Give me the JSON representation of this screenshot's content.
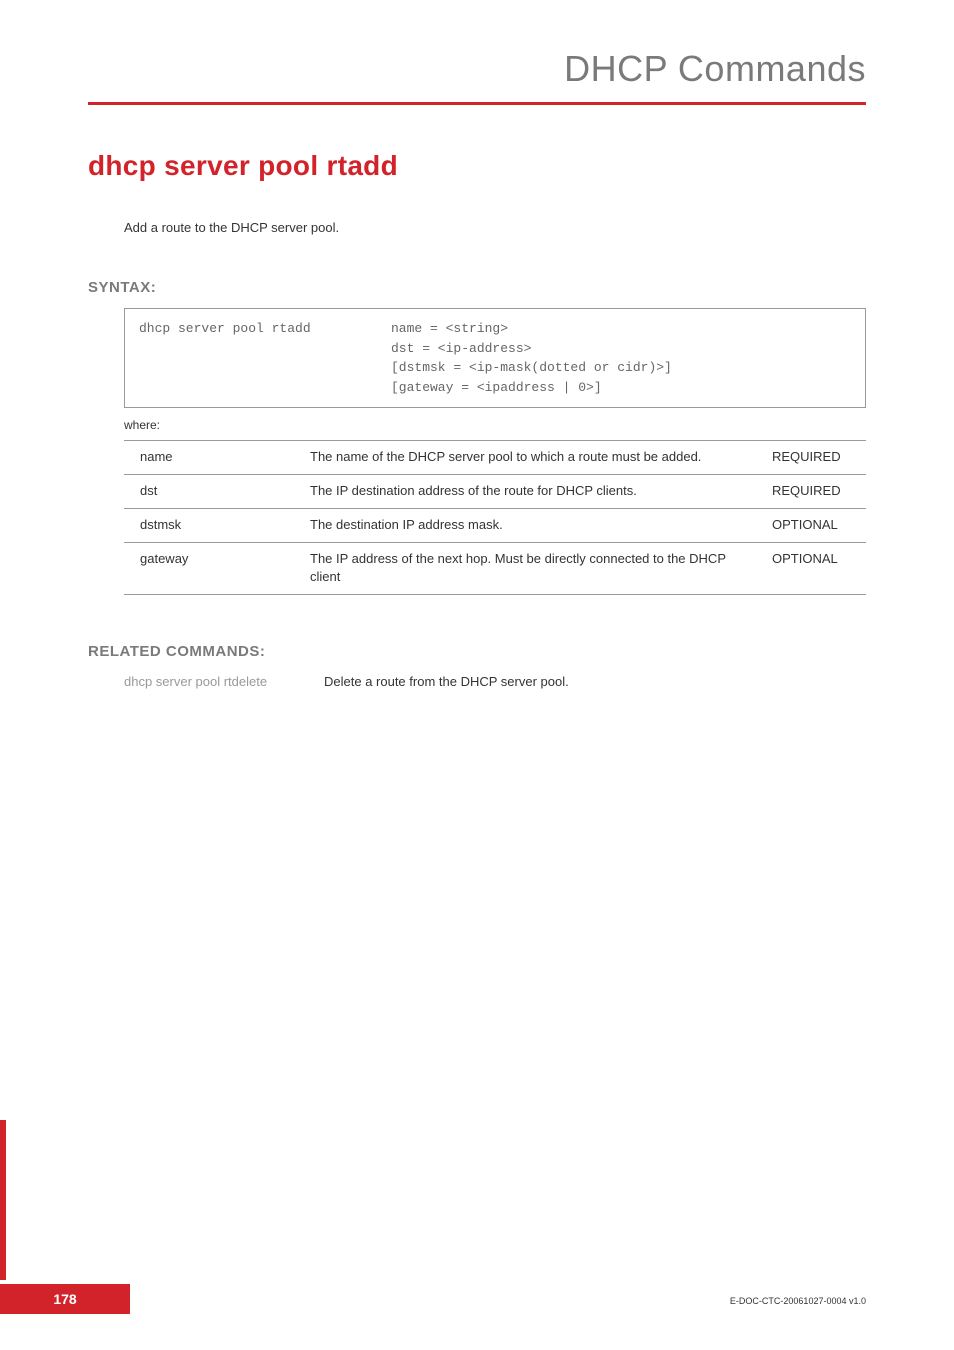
{
  "header": {
    "section_title": "DHCP Commands"
  },
  "command": {
    "title": "dhcp server pool rtadd",
    "description": "Add a route to the DHCP server pool."
  },
  "syntax": {
    "heading": "SYNTAX:",
    "command": "dhcp server pool rtadd",
    "args": [
      "name = <string>",
      "dst = <ip-address>",
      "[dstmsk = <ip-mask(dotted or cidr)>]",
      "[gateway = <ipaddress | 0>]"
    ],
    "where_label": "where:",
    "box_border_color": "#999999",
    "code_color": "#666666",
    "code_font_family": "Courier New"
  },
  "params": {
    "rows": [
      {
        "name": "name",
        "desc": "The name of the DHCP server pool to which a route must be added.",
        "req": "REQUIRED"
      },
      {
        "name": "dst",
        "desc": "The IP destination address of the route for DHCP clients.",
        "req": "REQUIRED"
      },
      {
        "name": "dstmsk",
        "desc": "The destination IP address mask.",
        "req": "OPTIONAL"
      },
      {
        "name": "gateway",
        "desc": "The IP address of the next hop. Must be directly connected to the DHCP client",
        "req": "OPTIONAL"
      }
    ],
    "border_color": "#9a9a9a",
    "col_widths": {
      "name": 170,
      "req": 110
    }
  },
  "related": {
    "heading": "RELATED COMMANDS:",
    "items": [
      {
        "cmd": "dhcp server pool rtdelete",
        "desc": "Delete a route from the DHCP server pool."
      }
    ]
  },
  "footer": {
    "page_number": "178",
    "doc_id": "E-DOC-CTC-20061027-0004 v1.0",
    "page_box_bg": "#d2232a",
    "page_box_fg": "#ffffff"
  },
  "colors": {
    "accent_red": "#d2232a",
    "heading_gray": "#7a7a7a",
    "text": "#333333",
    "muted": "#999999",
    "background": "#ffffff"
  },
  "typography": {
    "header_title_size": 36,
    "command_title_size": 28,
    "section_heading_size": 15,
    "body_size": 13,
    "footer_docid_size": 9
  }
}
